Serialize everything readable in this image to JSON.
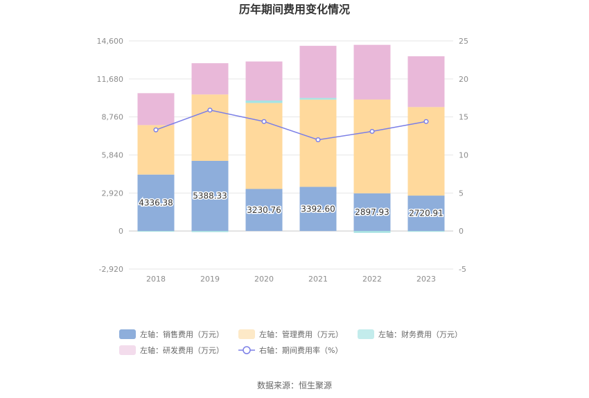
{
  "chart_data": {
    "type": "bar",
    "title": "历年期间费用变化情况",
    "categories": [
      "2018",
      "2019",
      "2020",
      "2021",
      "2022",
      "2023"
    ],
    "left_axis": {
      "min": -2920,
      "max": 14600,
      "ticks": [
        "-2,920",
        "0",
        "2,920",
        "5,840",
        "8,760",
        "11,680",
        "14,600"
      ]
    },
    "right_axis": {
      "min": -5,
      "max": 25,
      "ticks": [
        "-5",
        "0",
        "5",
        "10",
        "15",
        "20",
        "25"
      ]
    },
    "series": [
      {
        "name": "左轴：销售费用（万元）",
        "type": "bar",
        "stack": true,
        "color": "#8eaedb",
        "values": [
          4336.38,
          5388.33,
          3230.76,
          3392.6,
          2897.93,
          2720.91
        ],
        "labels": [
          "4336.38",
          "5388.33",
          "3230.76",
          "3392.60",
          "2897.93",
          "2720.91"
        ]
      },
      {
        "name": "左轴：管理费用（万元）",
        "type": "bar",
        "stack": true,
        "color": "#ffd99c",
        "values": [
          3800,
          5100,
          6600,
          6700,
          7200,
          6800
        ]
      },
      {
        "name": "左轴：财务费用（万元）",
        "type": "bar",
        "stack": true,
        "color": "#a6e3e3",
        "values": [
          -40,
          -80,
          190,
          130,
          -140,
          -60
        ]
      },
      {
        "name": "左轴：研发费用（万元）",
        "type": "bar",
        "stack": true,
        "color": "#e9b8d9",
        "values": [
          2450,
          2400,
          3000,
          4000,
          4200,
          3900
        ]
      },
      {
        "name": "右轴：期间费用率（%）",
        "type": "line",
        "axis": "right",
        "color": "#7b7fe6",
        "values": [
          13.3,
          15.9,
          14.4,
          12.0,
          13.1,
          14.4
        ]
      }
    ],
    "legend_position": "bottom",
    "grid": true
  },
  "footer": {
    "source": "数据来源：恒生聚源"
  }
}
